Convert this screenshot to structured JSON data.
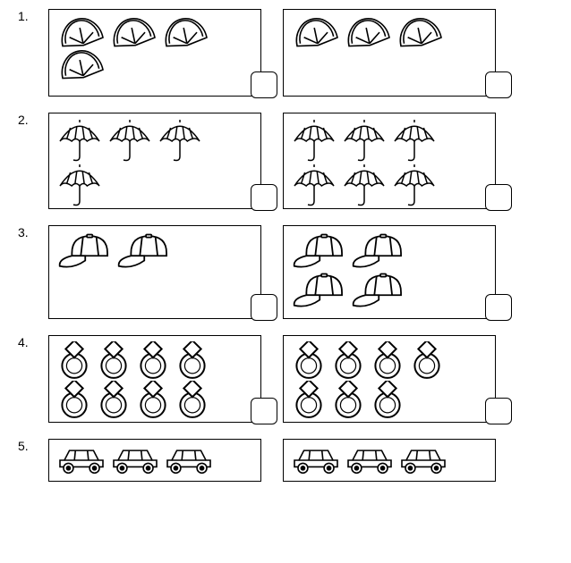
{
  "stroke": "#000000",
  "fill": "#ffffff",
  "rows": [
    {
      "num": "1.",
      "heightClass": "h1",
      "icon": "orange",
      "iconW": 54,
      "iconH": 36,
      "left": {
        "layout": [
          [
            3
          ],
          [
            1
          ]
        ],
        "answerBox": true
      },
      "right": {
        "layout": [
          [
            3
          ]
        ],
        "answerBox": true
      }
    },
    {
      "num": "2.",
      "heightClass": "h2",
      "icon": "umbrella",
      "iconW": 52,
      "iconH": 50,
      "left": {
        "layout": [
          [
            3
          ],
          [
            1
          ]
        ],
        "answerBox": true
      },
      "right": {
        "layout": [
          [
            3
          ],
          [
            3
          ]
        ],
        "answerBox": true
      }
    },
    {
      "num": "3.",
      "heightClass": "h3",
      "icon": "cap",
      "iconW": 62,
      "iconH": 44,
      "left": {
        "layout": [
          [
            2
          ]
        ],
        "answerBox": true
      },
      "right": {
        "layout": [
          [
            2
          ],
          [
            2
          ]
        ],
        "answerBox": true
      }
    },
    {
      "num": "4.",
      "heightClass": "h4",
      "icon": "ring",
      "iconW": 40,
      "iconH": 44,
      "left": {
        "layout": [
          [
            4
          ],
          [
            4
          ]
        ],
        "answerBox": true
      },
      "right": {
        "layout": [
          [
            4
          ],
          [
            3
          ]
        ],
        "answerBox": true
      }
    },
    {
      "num": "5.",
      "heightClass": "h5",
      "icon": "car",
      "iconW": 56,
      "iconH": 34,
      "left": {
        "layout": [
          [
            3
          ]
        ],
        "answerBox": false
      },
      "right": {
        "layout": [
          [
            3
          ]
        ],
        "answerBox": false
      }
    }
  ]
}
